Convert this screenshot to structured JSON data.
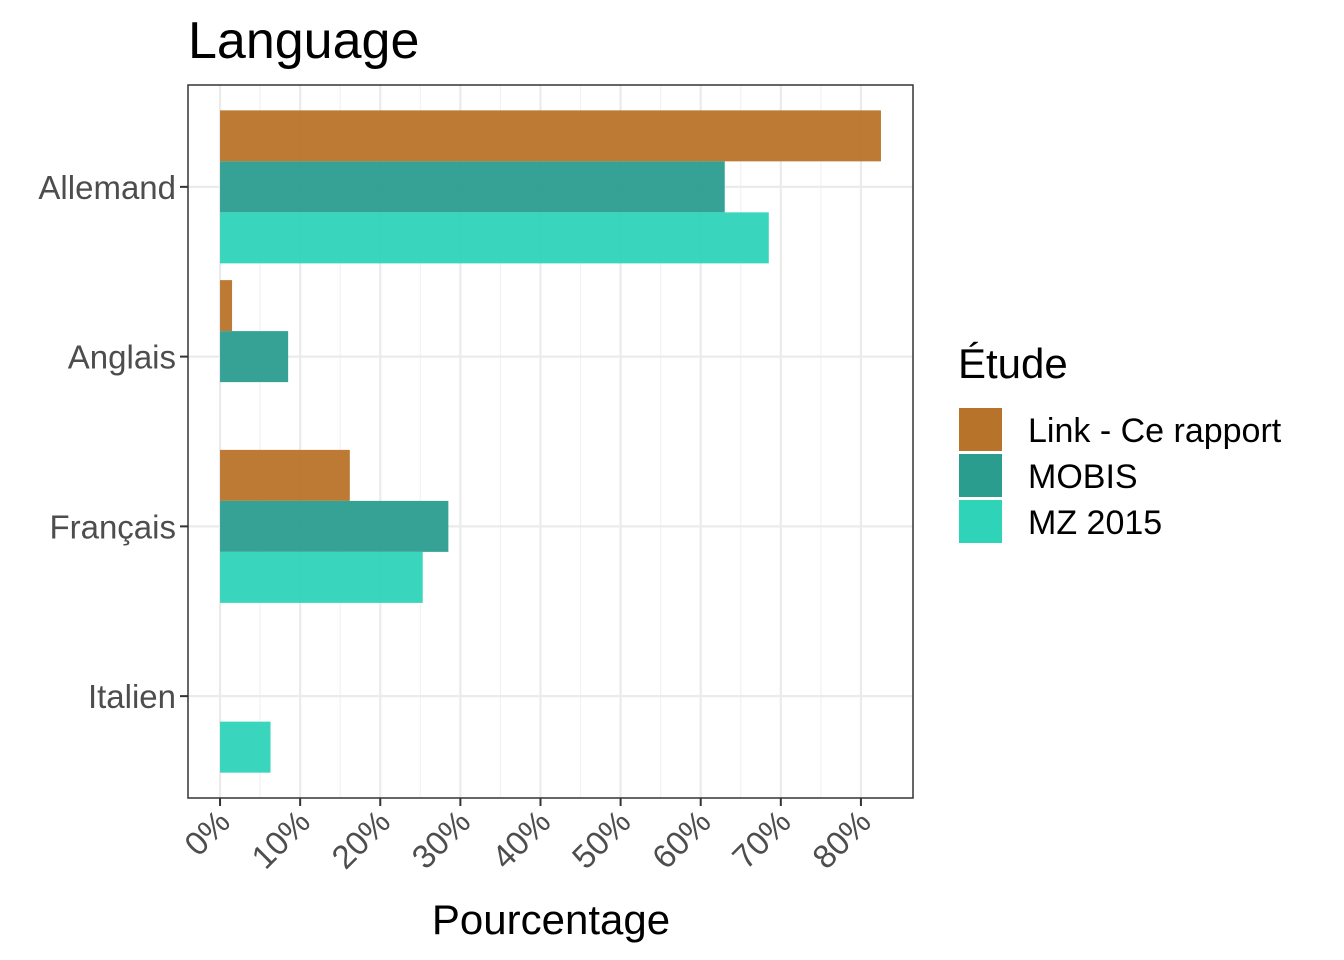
{
  "chart_data": {
    "type": "bar",
    "orientation": "horizontal",
    "title": "Language",
    "xlabel": "Pourcentage",
    "ylabel": "",
    "categories": [
      "Allemand",
      "Anglais",
      "Français",
      "Italien"
    ],
    "series": [
      {
        "name": "Link - Ce rapport",
        "color": "#B8732A",
        "values": [
          82.5,
          1.5,
          16.2,
          0
        ]
      },
      {
        "name": "MOBIS",
        "color": "#2A9D8F",
        "values": [
          63.0,
          8.5,
          28.5,
          0
        ]
      },
      {
        "name": "MZ 2015",
        "color": "#2ED3B8",
        "values": [
          68.5,
          0,
          25.3,
          6.3
        ]
      }
    ],
    "xlim": [
      -4,
      86.5
    ],
    "xticks": [
      0,
      10,
      20,
      30,
      40,
      50,
      60,
      70,
      80
    ],
    "xtick_labels": [
      "0%",
      "10%",
      "20%",
      "30%",
      "40%",
      "50%",
      "60%",
      "70%",
      "80%"
    ],
    "grid": true,
    "legend": {
      "title": "Étude",
      "position": "right"
    }
  }
}
